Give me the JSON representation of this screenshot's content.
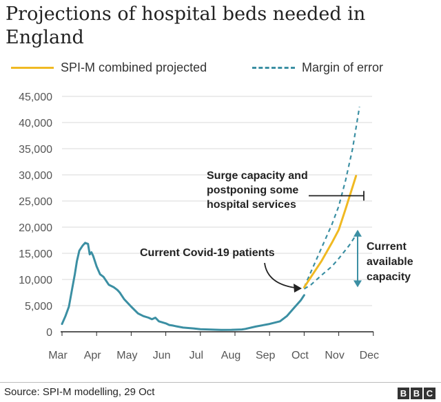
{
  "chart_data": {
    "type": "line",
    "title": "Projections of hospital beds needed in England",
    "xlabel": "",
    "ylabel": "",
    "ylim": [
      0,
      45000
    ],
    "yticks": [
      "0",
      "5,000",
      "10,000",
      "15,000",
      "20,000",
      "25,000",
      "30,000",
      "35,000",
      "40,000",
      "45,000"
    ],
    "yticks_values": [
      0,
      5000,
      10000,
      15000,
      20000,
      25000,
      30000,
      35000,
      40000,
      45000
    ],
    "x_ticks": [
      "Mar",
      "Apr",
      "May",
      "Jun",
      "Jul",
      "Aug",
      "Sep",
      "Oct",
      "Nov",
      "Dec"
    ],
    "grid": "horizontal",
    "legend_position": "top",
    "series": [
      {
        "name": "",
        "role": "current_patients",
        "style": "solid",
        "color": "#3b8fa3",
        "x": [
          0.0,
          0.1,
          0.2,
          0.3,
          0.37,
          0.43,
          0.5,
          0.6,
          0.67,
          0.75,
          0.8,
          0.85,
          0.9,
          0.95,
          1.0,
          1.1,
          1.2,
          1.35,
          1.5,
          1.6,
          1.67,
          1.72,
          1.8,
          1.9,
          2.0,
          2.2,
          2.35,
          2.5,
          2.6,
          2.7,
          2.8,
          3.0,
          3.1,
          3.2,
          3.3,
          3.5,
          3.8,
          4.0,
          4.3,
          4.6,
          4.9,
          5.2,
          5.3,
          5.6,
          6.0,
          6.3,
          6.5,
          6.7,
          6.9,
          7.0
        ],
        "y": [
          1500,
          3000,
          4800,
          8500,
          11000,
          13500,
          15500,
          16500,
          17000,
          16800,
          14800,
          15200,
          14500,
          13500,
          12500,
          11000,
          10500,
          9000,
          8500,
          8000,
          7500,
          7000,
          6200,
          5500,
          4800,
          3500,
          3000,
          2700,
          2400,
          2700,
          2000,
          1600,
          1300,
          1200,
          1050,
          800,
          650,
          500,
          420,
          370,
          380,
          450,
          550,
          1000,
          1500,
          2000,
          3000,
          4500,
          6000,
          7000
        ]
      },
      {
        "name": "SPI-M combined projected",
        "role": "projection",
        "style": "solid",
        "color": "#f0b922",
        "x": [
          7.0,
          7.2,
          7.5,
          7.8,
          8.0,
          8.2,
          8.5
        ],
        "y": [
          8500,
          10500,
          13500,
          17000,
          19500,
          23500,
          29800
        ]
      },
      {
        "name": "Margin of error",
        "role": "margin_upper",
        "style": "dashed",
        "color": "#3b8fa3",
        "x": [
          7.0,
          7.2,
          7.5,
          7.8,
          8.0,
          8.2,
          8.4,
          8.6
        ],
        "y": [
          8500,
          11500,
          16000,
          20500,
          24000,
          29000,
          35000,
          43000
        ]
      },
      {
        "name": "Margin of error",
        "role": "margin_lower",
        "style": "dashed",
        "color": "#3b8fa3",
        "x": [
          7.0,
          7.2,
          7.5,
          7.8,
          8.0,
          8.3,
          8.6
        ],
        "y": [
          8200,
          9000,
          10800,
          12500,
          14000,
          16500,
          19500
        ]
      }
    ],
    "annotations": [
      {
        "text": "Current Covid-19 patients",
        "role": "current_label"
      },
      {
        "text": "Surge capacity and postponing some hospital services",
        "role": "surge_label"
      },
      {
        "text": "Current available capacity",
        "role": "capacity_label"
      }
    ],
    "surge_capacity_value": 26000,
    "capacity_arrow_range": [
      8500,
      19500
    ]
  },
  "legend": {
    "projection_label": "SPI-M combined projected",
    "margin_label": "Margin of error"
  },
  "colors": {
    "projection": "#f0b922",
    "patients": "#3b8fa3",
    "margin": "#3b8fa3",
    "grid": "#d9d9d9",
    "axis": "#222222"
  },
  "footer": {
    "source": "Source: SPI-M modelling, 29 Oct",
    "logo_letters": [
      "B",
      "B",
      "C"
    ]
  }
}
